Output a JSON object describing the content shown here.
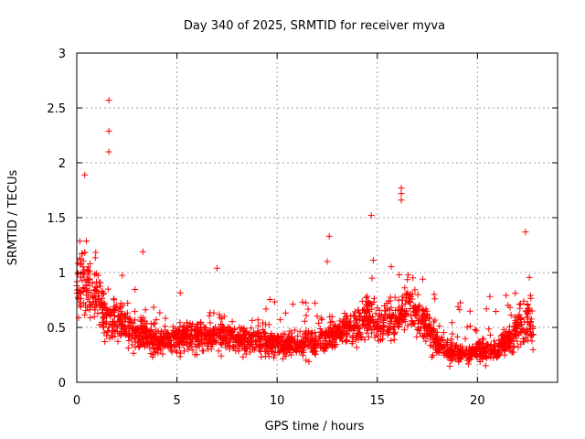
{
  "chart_data": {
    "type": "scatter",
    "title": "Day 340 of 2025, SRMTID for receiver myva",
    "xlabel": "GPS time / hours",
    "ylabel": "SRMTID / TECUs",
    "xlim": [
      0,
      24
    ],
    "ylim": [
      0,
      3
    ],
    "x_ticks": [
      0,
      5,
      10,
      15,
      20
    ],
    "x_tick_labels": [
      "0",
      "5",
      "10",
      "15",
      "20"
    ],
    "y_ticks": [
      0,
      0.5,
      1,
      1.5,
      2,
      2.5,
      3
    ],
    "y_tick_labels": [
      "0",
      "0.5",
      "1",
      "1.5",
      "2",
      "2.5",
      "3"
    ],
    "grid": true,
    "marker": "+",
    "color": "#ff0000",
    "notable_points": [
      {
        "x": 1.6,
        "y": 2.57
      },
      {
        "x": 1.6,
        "y": 2.29
      },
      {
        "x": 1.6,
        "y": 2.1
      },
      {
        "x": 0.4,
        "y": 1.89
      },
      {
        "x": 16.2,
        "y": 1.77
      },
      {
        "x": 16.2,
        "y": 1.72
      },
      {
        "x": 16.2,
        "y": 1.66
      },
      {
        "x": 14.7,
        "y": 1.52
      },
      {
        "x": 22.4,
        "y": 1.37
      },
      {
        "x": 12.6,
        "y": 1.33
      },
      {
        "x": 3.3,
        "y": 1.19
      },
      {
        "x": 12.5,
        "y": 1.1
      },
      {
        "x": 7.0,
        "y": 1.04
      }
    ],
    "trend": [
      {
        "x": 0.0,
        "y": 0.85
      },
      {
        "x": 0.5,
        "y": 0.95
      },
      {
        "x": 1.0,
        "y": 0.75
      },
      {
        "x": 1.5,
        "y": 0.6
      },
      {
        "x": 2.0,
        "y": 0.55
      },
      {
        "x": 2.5,
        "y": 0.5
      },
      {
        "x": 3.0,
        "y": 0.45
      },
      {
        "x": 4.0,
        "y": 0.38
      },
      {
        "x": 5.0,
        "y": 0.4
      },
      {
        "x": 6.0,
        "y": 0.42
      },
      {
        "x": 7.0,
        "y": 0.45
      },
      {
        "x": 8.0,
        "y": 0.38
      },
      {
        "x": 9.0,
        "y": 0.36
      },
      {
        "x": 10.0,
        "y": 0.35
      },
      {
        "x": 11.0,
        "y": 0.33
      },
      {
        "x": 12.0,
        "y": 0.38
      },
      {
        "x": 13.0,
        "y": 0.45
      },
      {
        "x": 14.0,
        "y": 0.5
      },
      {
        "x": 14.5,
        "y": 0.62
      },
      {
        "x": 15.0,
        "y": 0.5
      },
      {
        "x": 16.0,
        "y": 0.58
      },
      {
        "x": 16.5,
        "y": 0.68
      },
      {
        "x": 17.0,
        "y": 0.6
      },
      {
        "x": 17.5,
        "y": 0.5
      },
      {
        "x": 18.0,
        "y": 0.35
      },
      {
        "x": 19.0,
        "y": 0.25
      },
      {
        "x": 20.0,
        "y": 0.28
      },
      {
        "x": 21.0,
        "y": 0.3
      },
      {
        "x": 22.0,
        "y": 0.48
      },
      {
        "x": 22.5,
        "y": 0.6
      },
      {
        "x": 22.8,
        "y": 0.45
      }
    ],
    "x_data_end": 22.8,
    "point_count": 2200
  }
}
